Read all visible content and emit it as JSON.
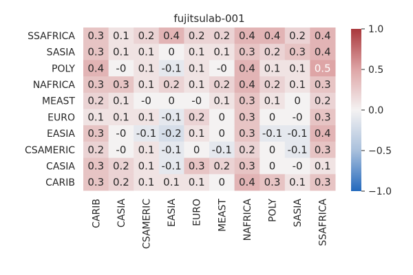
{
  "chart_data": {
    "type": "heatmap",
    "title": "fujitsulab-001",
    "rows": [
      "SSAFRICA",
      "SASIA",
      "POLY",
      "NAFRICA",
      "MEAST",
      "EURO",
      "EASIA",
      "CSAMERIC",
      "CASIA",
      "CARIB"
    ],
    "columns": [
      "CARIB",
      "CASIA",
      "CSAMERIC",
      "EASIA",
      "EURO",
      "MEAST",
      "NAFRICA",
      "POLY",
      "SASIA",
      "SSAFRICA"
    ],
    "values": [
      [
        0.3,
        0.1,
        0.2,
        0.4,
        0.2,
        0.2,
        0.4,
        0.4,
        0.2,
        0.4
      ],
      [
        0.3,
        0.1,
        0.1,
        0.0,
        0.1,
        0.1,
        0.3,
        0.2,
        0.3,
        0.4
      ],
      [
        0.4,
        -0.0,
        0.1,
        -0.1,
        0.1,
        -0.0,
        0.4,
        0.1,
        0.1,
        0.5
      ],
      [
        0.3,
        0.3,
        0.1,
        0.2,
        0.1,
        0.2,
        0.4,
        0.2,
        0.1,
        0.3
      ],
      [
        0.2,
        0.1,
        -0.0,
        0.0,
        -0.0,
        0.1,
        0.3,
        0.1,
        0.0,
        0.2
      ],
      [
        0.1,
        0.1,
        0.1,
        -0.1,
        0.2,
        0.0,
        0.3,
        0.0,
        -0.0,
        0.3
      ],
      [
        0.3,
        -0.0,
        -0.1,
        -0.2,
        0.1,
        0.0,
        0.3,
        -0.1,
        -0.1,
        0.4
      ],
      [
        0.2,
        -0.0,
        0.1,
        -0.1,
        0.0,
        -0.1,
        0.2,
        0.0,
        -0.1,
        0.3
      ],
      [
        0.3,
        0.2,
        0.1,
        -0.1,
        0.3,
        0.2,
        0.3,
        0.0,
        -0.0,
        0.1
      ],
      [
        0.3,
        0.2,
        0.1,
        0.1,
        0.1,
        0.0,
        0.4,
        0.3,
        0.1,
        0.3
      ]
    ],
    "labels": [
      [
        "0.3",
        "0.1",
        "0.2",
        "0.4",
        "0.2",
        "0.2",
        "0.4",
        "0.4",
        "0.2",
        "0.4"
      ],
      [
        "0.3",
        "0.1",
        "0.1",
        "0",
        "0.1",
        "0.1",
        "0.3",
        "0.2",
        "0.3",
        "0.4"
      ],
      [
        "0.4",
        "-0",
        "0.1",
        "-0.1",
        "0.1",
        "-0",
        "0.4",
        "0.1",
        "0.1",
        "0.5"
      ],
      [
        "0.3",
        "0.3",
        "0.1",
        "0.2",
        "0.1",
        "0.2",
        "0.4",
        "0.2",
        "0.1",
        "0.3"
      ],
      [
        "0.2",
        "0.1",
        "-0",
        "0",
        "-0",
        "0.1",
        "0.3",
        "0.1",
        "0",
        "0.2"
      ],
      [
        "0.1",
        "0.1",
        "0.1",
        "-0.1",
        "0.2",
        "0",
        "0.3",
        "0",
        "-0",
        "0.3"
      ],
      [
        "0.3",
        "-0",
        "-0.1",
        "-0.2",
        "0.1",
        "0",
        "0.3",
        "-0.1",
        "-0.1",
        "0.4"
      ],
      [
        "0.2",
        "-0",
        "0.1",
        "-0.1",
        "0",
        "-0.1",
        "0.2",
        "0",
        "-0.1",
        "0.3"
      ],
      [
        "0.3",
        "0.2",
        "0.1",
        "-0.1",
        "0.3",
        "0.2",
        "0.3",
        "0",
        "-0",
        "0.1"
      ],
      [
        "0.3",
        "0.2",
        "0.1",
        "0.1",
        "0.1",
        "0",
        "0.4",
        "0.3",
        "0.1",
        "0.3"
      ]
    ],
    "vmin": -1.0,
    "vmax": 1.0,
    "colormap": "vlag",
    "colorbar": {
      "ticks": [
        1.0,
        0.5,
        0.0,
        -0.5,
        -1.0
      ],
      "tick_labels": [
        "1.0",
        "0.5",
        "0.0",
        "−0.5",
        "−1.0"
      ]
    },
    "grid": false
  }
}
